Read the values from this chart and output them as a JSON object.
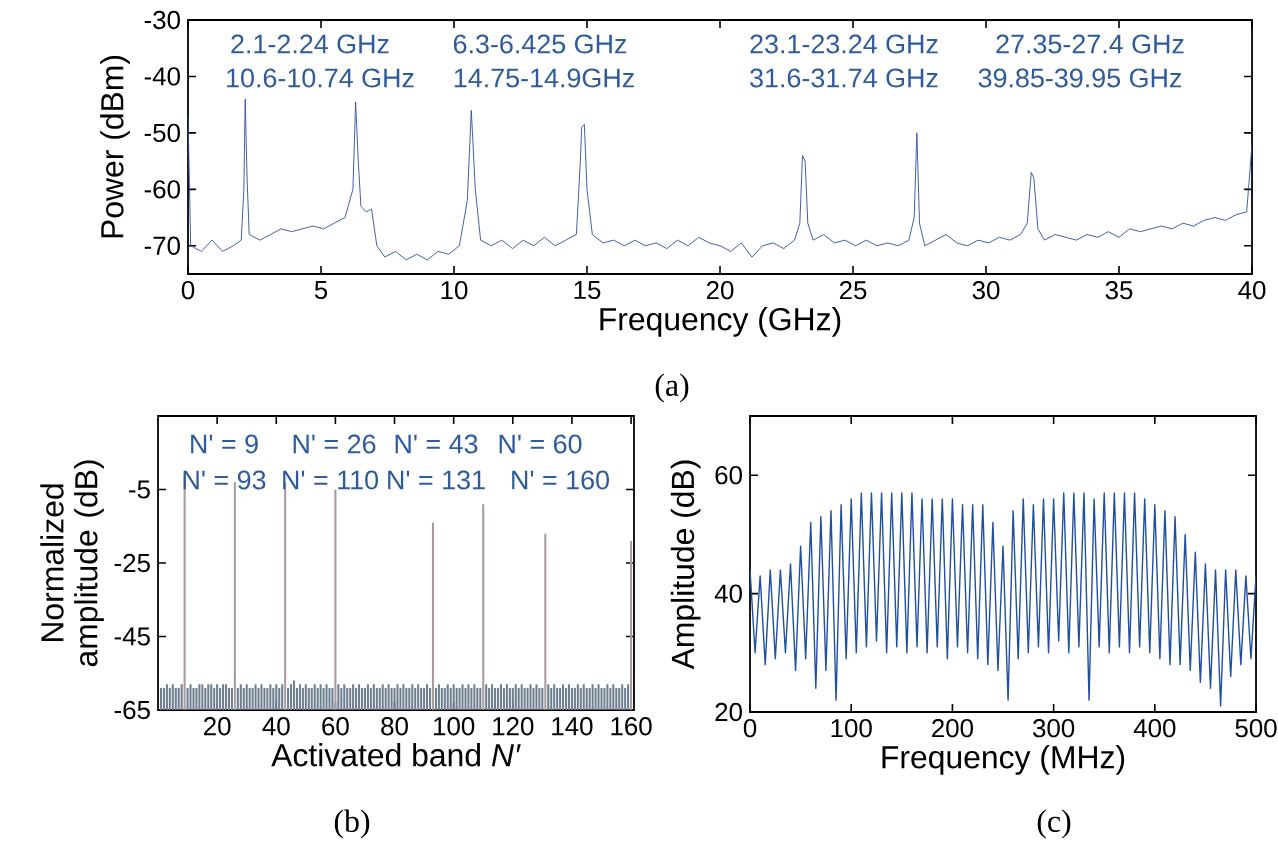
{
  "chart_data": [
    {
      "type": "line",
      "xlabel": "Frequency  (GHz)",
      "ylabel": "Power (dBm)",
      "xlim": [
        0,
        40
      ],
      "ylim": [
        -75,
        -30
      ],
      "xticks": [
        0,
        5,
        10,
        15,
        20,
        25,
        30,
        35,
        40
      ],
      "yticks": [
        -70,
        -60,
        -50,
        -40,
        -30
      ],
      "color": "#2d4f9e",
      "annotations": [
        "2.1-2.24 GHz",
        "6.3-6.425 GHz",
        "23.1-23.24 GHz",
        "27.35-27.4 GHz",
        "10.6-10.74 GHz",
        "14.75-14.9GHz",
        "31.6-31.74 GHz",
        "39.85-39.95 GHz",
        "(a)"
      ],
      "x": [
        0,
        0.1,
        0.5,
        0.9,
        1.3,
        1.7,
        2.0,
        2.1,
        2.15,
        2.22,
        2.3,
        2.7,
        3.1,
        3.5,
        3.9,
        4.3,
        4.7,
        5.1,
        5.5,
        5.9,
        6.2,
        6.3,
        6.4,
        6.5,
        6.7,
        6.9,
        7.1,
        7.4,
        7.8,
        8.2,
        8.6,
        9.0,
        9.4,
        9.8,
        10.2,
        10.5,
        10.65,
        10.8,
        11,
        11.4,
        11.8,
        12.2,
        12.6,
        13,
        13.4,
        13.8,
        14.2,
        14.6,
        14.75,
        14.8,
        14.9,
        15.0,
        15.2,
        15.6,
        16,
        16.4,
        16.8,
        17.2,
        17.6,
        18,
        18.4,
        18.8,
        19.2,
        19.6,
        20,
        20.4,
        20.8,
        21.2,
        21.6,
        22,
        22.4,
        22.8,
        23.0,
        23.1,
        23.2,
        23.3,
        23.5,
        23.9,
        24.3,
        24.7,
        25.1,
        25.5,
        25.9,
        26.3,
        26.7,
        27.1,
        27.3,
        27.4,
        27.5,
        27.7,
        28.1,
        28.5,
        28.9,
        29.3,
        29.7,
        30.1,
        30.5,
        30.9,
        31.3,
        31.55,
        31.7,
        31.8,
        31.95,
        32.2,
        32.6,
        33,
        33.4,
        33.8,
        34.2,
        34.6,
        35,
        35.4,
        35.8,
        36.2,
        36.6,
        37,
        37.4,
        37.8,
        38.2,
        38.6,
        39,
        39.4,
        39.8,
        40
      ],
      "values": [
        -47,
        -70,
        -71,
        -69,
        -71,
        -70,
        -69,
        -60,
        -44,
        -58,
        -68,
        -69,
        -68,
        -67,
        -67.5,
        -67,
        -66.5,
        -67,
        -66,
        -65,
        -60,
        -44.5,
        -55,
        -63,
        -64,
        -63.5,
        -70,
        -72,
        -71,
        -72.5,
        -71.5,
        -72.5,
        -71,
        -71.5,
        -70,
        -62,
        -46,
        -60,
        -69,
        -70,
        -69,
        -70.5,
        -69,
        -70,
        -68.5,
        -70,
        -69,
        -68,
        -55,
        -49,
        -48.5,
        -60,
        -68,
        -69.5,
        -69,
        -70,
        -69,
        -70,
        -69.5,
        -70.5,
        -69,
        -70,
        -68.5,
        -69.5,
        -70,
        -71,
        -69.5,
        -72,
        -70,
        -69.5,
        -70.5,
        -69,
        -66,
        -54,
        -55,
        -66,
        -69,
        -68,
        -69.5,
        -69,
        -70,
        -69,
        -70,
        -69.5,
        -70,
        -69,
        -65,
        -50,
        -66,
        -70,
        -69,
        -68,
        -69.5,
        -70,
        -69,
        -69.5,
        -68.5,
        -69,
        -68,
        -66,
        -57,
        -58,
        -67,
        -69,
        -68,
        -68.5,
        -69,
        -68,
        -68.5,
        -67.5,
        -68.5,
        -67,
        -67.5,
        -67,
        -66.5,
        -67,
        -66,
        -66.5,
        -65.5,
        -65,
        -65.5,
        -64.5,
        -64,
        -52
      ]
    },
    {
      "type": "bar",
      "xlabel": "Activated band *N′*",
      "ylabel": "Normalized amplitude (dB)",
      "xlim": [
        0,
        161
      ],
      "ylim": [
        -65,
        15
      ],
      "xticks": [
        20,
        40,
        60,
        80,
        100,
        120,
        140,
        160
      ],
      "yticks": [
        -65,
        -45,
        -25,
        -5
      ],
      "annotations": [
        "N' = 9",
        "N' = 26",
        "N' = 43",
        "N' = 60",
        "N' = 93",
        "N' = 110",
        "N' = 131",
        "N' = 160",
        "(b)"
      ],
      "x": [
        1,
        2,
        3,
        4,
        5,
        6,
        7,
        8,
        9,
        10,
        11,
        12,
        13,
        14,
        15,
        16,
        17,
        18,
        19,
        20,
        21,
        22,
        23,
        24,
        25,
        26,
        27,
        28,
        29,
        30,
        31,
        32,
        33,
        34,
        35,
        36,
        37,
        38,
        39,
        40,
        41,
        42,
        43,
        44,
        45,
        46,
        47,
        48,
        49,
        50,
        51,
        52,
        53,
        54,
        55,
        56,
        57,
        58,
        59,
        60,
        61,
        62,
        63,
        64,
        65,
        66,
        67,
        68,
        69,
        70,
        71,
        72,
        73,
        74,
        75,
        76,
        77,
        78,
        79,
        80,
        81,
        82,
        83,
        84,
        85,
        86,
        87,
        88,
        89,
        90,
        91,
        92,
        93,
        94,
        95,
        96,
        97,
        98,
        99,
        100,
        101,
        102,
        103,
        104,
        105,
        106,
        107,
        108,
        109,
        110,
        111,
        112,
        113,
        114,
        115,
        116,
        117,
        118,
        119,
        120,
        121,
        122,
        123,
        124,
        125,
        126,
        127,
        128,
        129,
        130,
        131,
        132,
        133,
        134,
        135,
        136,
        137,
        138,
        139,
        140,
        141,
        142,
        143,
        144,
        145,
        146,
        147,
        148,
        149,
        150,
        151,
        152,
        153,
        154,
        155,
        156,
        157,
        158,
        159,
        160
      ],
      "base": [
        -65,
        -65,
        -65,
        -65,
        -65,
        -65,
        -65,
        -65,
        -65,
        -65,
        -65,
        -65,
        -65,
        -65,
        -65,
        -65,
        -65,
        -65,
        -65,
        -65,
        -65,
        -65,
        -65,
        -65,
        -65,
        -65,
        -65,
        -65,
        -65,
        -65,
        -65,
        -65,
        -65,
        -65,
        -65,
        -65,
        -65,
        -65,
        -65,
        -65,
        -65,
        -65,
        -65,
        -65,
        -65,
        -65,
        -65,
        -65,
        -65,
        -65,
        -65,
        -65,
        -65,
        -65,
        -65,
        -65,
        -65,
        -65,
        -65,
        -65,
        -65,
        -65,
        -65,
        -65,
        -65,
        -65,
        -65,
        -65,
        -65,
        -65,
        -65,
        -65,
        -65,
        -65,
        -65,
        -65,
        -65,
        -65,
        -65,
        -65,
        -65,
        -65,
        -65,
        -65,
        -65,
        -65,
        -65,
        -65,
        -65,
        -65,
        -65,
        -65,
        -65,
        -65,
        -65,
        -65,
        -65,
        -65,
        -65,
        -65,
        -65,
        -65,
        -65,
        -65,
        -65,
        -65,
        -65,
        -65,
        -65,
        -65,
        -65,
        -65,
        -65,
        -65,
        -65,
        -65,
        -65,
        -65,
        -65,
        -65,
        -65,
        -65,
        -65,
        -65,
        -65,
        -65,
        -65,
        -65,
        -65,
        -65,
        -65,
        -65,
        -65,
        -65,
        -65,
        -65,
        -65,
        -65,
        -65,
        -65,
        -65,
        -65,
        -65,
        -65,
        -65,
        -65,
        -65,
        -65,
        -65,
        -65,
        -65,
        -65,
        -65,
        -65,
        -65,
        -65,
        -65,
        -65,
        -65,
        -65
      ],
      "values": [
        6,
        6,
        7,
        6,
        7,
        6,
        6,
        7,
        64,
        6,
        7,
        6,
        6,
        7,
        7,
        6,
        7,
        7,
        6,
        7,
        6,
        7,
        7,
        6,
        6,
        62,
        6,
        7,
        6,
        7,
        6,
        6,
        7,
        6,
        7,
        6,
        6,
        7,
        6,
        7,
        6,
        7,
        62,
        6,
        7,
        8,
        6,
        7,
        6,
        7,
        6,
        6,
        7,
        6,
        7,
        6,
        7,
        6,
        6,
        60,
        7,
        6,
        7,
        6,
        6,
        7,
        6,
        7,
        6,
        6,
        7,
        6,
        7,
        6,
        6,
        7,
        6,
        7,
        6,
        6,
        7,
        6,
        7,
        6,
        6,
        7,
        6,
        7,
        6,
        6,
        7,
        6,
        51,
        6,
        7,
        6,
        6,
        7,
        6,
        7,
        6,
        6,
        7,
        6,
        7,
        6,
        7,
        6,
        6,
        56,
        7,
        6,
        7,
        6,
        6,
        7,
        6,
        7,
        6,
        6,
        7,
        6,
        7,
        6,
        6,
        7,
        6,
        7,
        6,
        6,
        48,
        7,
        6,
        7,
        6,
        6,
        7,
        6,
        7,
        6,
        6,
        7,
        6,
        7,
        6,
        6,
        7,
        6,
        7,
        6,
        6,
        7,
        6,
        7,
        6,
        6,
        7,
        6,
        7,
        46
      ],
      "colors": [
        "#6f7f8f",
        "#6f7f8f",
        "#6f7f8f",
        "#6f7f8f",
        "#6f7f8f",
        "#6f7f8f",
        "#6f7f8f",
        "#6f7f8f",
        "#a89c9c",
        "#6f7f8f",
        "#6f7f8f",
        "#6f7f8f",
        "#6f7f8f",
        "#6f7f8f",
        "#6f7f8f",
        "#6f7f8f",
        "#6f7f8f",
        "#6f7f8f",
        "#6f7f8f",
        "#6f7f8f",
        "#6f7f8f",
        "#6f7f8f",
        "#6f7f8f",
        "#6f7f8f",
        "#6f7f8f",
        "#a89c9c",
        "#6f7f8f",
        "#6f7f8f",
        "#6f7f8f",
        "#6f7f8f",
        "#6f7f8f",
        "#6f7f8f",
        "#6f7f8f",
        "#6f7f8f",
        "#6f7f8f",
        "#6f7f8f",
        "#6f7f8f",
        "#6f7f8f",
        "#6f7f8f",
        "#6f7f8f",
        "#6f7f8f",
        "#6f7f8f",
        "#a89c9c",
        "#6f7f8f",
        "#6f7f8f",
        "#6f7f8f",
        "#6f7f8f",
        "#6f7f8f",
        "#6f7f8f",
        "#6f7f8f",
        "#6f7f8f",
        "#6f7f8f",
        "#6f7f8f",
        "#6f7f8f",
        "#6f7f8f",
        "#6f7f8f",
        "#6f7f8f",
        "#6f7f8f",
        "#6f7f8f",
        "#a89c9c",
        "#6f7f8f",
        "#6f7f8f",
        "#6f7f8f",
        "#6f7f8f",
        "#6f7f8f",
        "#6f7f8f",
        "#6f7f8f",
        "#6f7f8f",
        "#6f7f8f",
        "#6f7f8f",
        "#6f7f8f",
        "#6f7f8f",
        "#6f7f8f",
        "#6f7f8f",
        "#6f7f8f",
        "#6f7f8f",
        "#6f7f8f",
        "#6f7f8f",
        "#6f7f8f",
        "#6f7f8f",
        "#6f7f8f",
        "#6f7f8f",
        "#6f7f8f",
        "#6f7f8f",
        "#6f7f8f",
        "#6f7f8f",
        "#6f7f8f",
        "#6f7f8f",
        "#6f7f8f",
        "#6f7f8f",
        "#6f7f8f",
        "#6f7f8f",
        "#a89c9c",
        "#6f7f8f",
        "#6f7f8f",
        "#6f7f8f",
        "#6f7f8f",
        "#6f7f8f",
        "#6f7f8f",
        "#6f7f8f",
        "#6f7f8f",
        "#6f7f8f",
        "#6f7f8f",
        "#6f7f8f",
        "#6f7f8f",
        "#6f7f8f",
        "#6f7f8f",
        "#6f7f8f",
        "#6f7f8f",
        "#a89c9c",
        "#6f7f8f",
        "#6f7f8f",
        "#6f7f8f",
        "#6f7f8f",
        "#6f7f8f",
        "#6f7f8f",
        "#6f7f8f",
        "#6f7f8f",
        "#6f7f8f",
        "#6f7f8f",
        "#6f7f8f",
        "#6f7f8f",
        "#6f7f8f",
        "#6f7f8f",
        "#6f7f8f",
        "#6f7f8f",
        "#6f7f8f",
        "#6f7f8f",
        "#6f7f8f",
        "#6f7f8f",
        "#a89c9c",
        "#6f7f8f",
        "#6f7f8f",
        "#6f7f8f",
        "#6f7f8f",
        "#6f7f8f",
        "#6f7f8f",
        "#6f7f8f",
        "#6f7f8f",
        "#6f7f8f",
        "#6f7f8f",
        "#6f7f8f",
        "#6f7f8f",
        "#6f7f8f",
        "#6f7f8f",
        "#6f7f8f",
        "#6f7f8f",
        "#6f7f8f",
        "#6f7f8f",
        "#6f7f8f",
        "#6f7f8f",
        "#6f7f8f",
        "#6f7f8f",
        "#6f7f8f",
        "#6f7f8f",
        "#6f7f8f",
        "#6f7f8f",
        "#6f7f8f",
        "#6f7f8f",
        "#a89c9c"
      ]
    },
    {
      "type": "line",
      "xlabel": "Frequency  (MHz)",
      "ylabel": "Amplitude (dB)",
      "xlim": [
        0,
        500
      ],
      "ylim": [
        20,
        70
      ],
      "xticks": [
        0,
        100,
        200,
        300,
        400,
        500
      ],
      "yticks": [
        20,
        40,
        60
      ],
      "color": "#1f4fa0",
      "annotations": [
        "(c)"
      ],
      "x": [
        0,
        5,
        10,
        15,
        20,
        25,
        30,
        35,
        40,
        45,
        50,
        55,
        60,
        65,
        70,
        75,
        80,
        85,
        90,
        95,
        100,
        105,
        110,
        115,
        120,
        125,
        130,
        135,
        140,
        145,
        150,
        155,
        160,
        165,
        170,
        175,
        180,
        185,
        190,
        195,
        200,
        205,
        210,
        215,
        220,
        225,
        230,
        235,
        240,
        245,
        250,
        255,
        260,
        265,
        270,
        275,
        280,
        285,
        290,
        295,
        300,
        305,
        310,
        315,
        320,
        325,
        330,
        335,
        340,
        345,
        350,
        355,
        360,
        365,
        370,
        375,
        380,
        385,
        390,
        395,
        400,
        405,
        410,
        415,
        420,
        425,
        430,
        435,
        440,
        445,
        450,
        455,
        460,
        465,
        470,
        475,
        480,
        485,
        490,
        495,
        500
      ],
      "values": [
        44,
        30,
        43,
        28,
        44,
        29,
        44,
        30,
        45,
        27,
        48,
        29,
        52,
        24,
        53,
        27,
        54,
        22,
        55,
        29,
        56,
        30,
        57,
        31,
        57,
        32,
        57,
        30,
        57,
        31,
        57,
        30,
        57,
        31,
        56,
        30,
        56,
        31,
        56,
        29,
        56,
        31,
        55,
        30,
        55,
        29,
        55,
        28,
        52,
        27,
        48,
        22,
        54,
        29,
        56,
        30,
        55,
        31,
        56,
        30,
        56,
        32,
        57,
        30,
        57,
        31,
        57,
        22,
        56,
        31,
        57,
        30,
        57,
        31,
        57,
        30,
        57,
        31,
        56,
        30,
        55,
        29,
        54,
        28,
        53,
        28,
        50,
        27,
        47,
        25,
        45,
        24,
        44,
        21,
        44,
        26,
        44,
        28,
        43,
        29,
        43
      ]
    }
  ]
}
